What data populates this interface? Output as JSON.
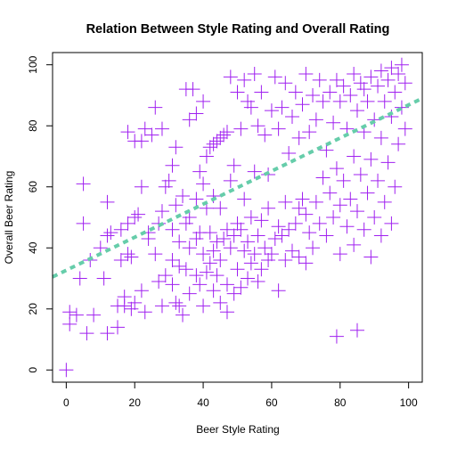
{
  "chart_data": {
    "type": "scatter",
    "title": "Relation Between Style Rating and Overall Rating",
    "xlabel": "Beer Style Rating",
    "ylabel": "Overall Beer Rating",
    "xlim": [
      -4,
      104
    ],
    "ylim": [
      -4,
      104
    ],
    "xticks": [
      0,
      20,
      40,
      60,
      80,
      100
    ],
    "yticks": [
      0,
      20,
      40,
      60,
      80,
      100
    ],
    "grid": false,
    "legend": "none",
    "point_color": "#a020f0",
    "marker": "plus",
    "trend_line": {
      "color": "#66cdaa",
      "style": "dashed",
      "x": [
        -4,
        104
      ],
      "y": [
        30.5,
        89
      ]
    },
    "series": [
      {
        "points": [
          [
            0,
            0
          ],
          [
            1,
            15
          ],
          [
            1,
            19
          ],
          [
            3,
            18
          ],
          [
            4,
            30
          ],
          [
            5,
            48
          ],
          [
            5,
            61
          ],
          [
            6,
            12
          ],
          [
            7,
            36
          ],
          [
            8,
            18
          ],
          [
            10,
            40
          ],
          [
            11,
            30
          ],
          [
            12,
            12
          ],
          [
            12,
            44
          ],
          [
            12,
            55
          ],
          [
            13,
            45
          ],
          [
            15,
            14
          ],
          [
            15,
            21
          ],
          [
            16,
            36
          ],
          [
            16,
            46
          ],
          [
            17,
            21
          ],
          [
            17,
            24
          ],
          [
            18,
            38
          ],
          [
            18,
            48
          ],
          [
            18,
            78
          ],
          [
            19,
            20
          ],
          [
            19,
            37
          ],
          [
            20,
            22
          ],
          [
            20,
            50
          ],
          [
            20,
            75
          ],
          [
            21,
            51
          ],
          [
            22,
            26
          ],
          [
            22,
            60
          ],
          [
            22,
            75
          ],
          [
            23,
            79
          ],
          [
            23,
            19
          ],
          [
            24,
            43
          ],
          [
            24,
            45
          ],
          [
            25,
            77
          ],
          [
            26,
            86
          ],
          [
            26,
            38
          ],
          [
            27,
            29
          ],
          [
            27,
            48
          ],
          [
            28,
            21
          ],
          [
            28,
            52
          ],
          [
            28,
            79
          ],
          [
            29,
            31
          ],
          [
            29,
            60
          ],
          [
            30,
            62
          ],
          [
            31,
            28
          ],
          [
            31,
            36
          ],
          [
            31,
            46
          ],
          [
            31,
            67
          ],
          [
            32,
            22
          ],
          [
            32,
            54
          ],
          [
            32,
            73
          ],
          [
            33,
            21
          ],
          [
            33,
            34
          ],
          [
            33,
            42
          ],
          [
            34,
            18
          ],
          [
            34,
            57
          ],
          [
            35,
            33
          ],
          [
            35,
            48
          ],
          [
            35,
            92
          ],
          [
            36,
            25
          ],
          [
            36,
            40
          ],
          [
            36,
            50
          ],
          [
            36,
            82
          ],
          [
            37,
            92
          ],
          [
            38,
            31
          ],
          [
            38,
            43
          ],
          [
            38,
            56
          ],
          [
            38,
            84
          ],
          [
            39,
            28
          ],
          [
            39,
            45
          ],
          [
            39,
            65
          ],
          [
            40,
            21
          ],
          [
            40,
            38
          ],
          [
            40,
            61
          ],
          [
            40,
            88
          ],
          [
            41,
            32
          ],
          [
            41,
            53
          ],
          [
            41,
            70
          ],
          [
            42,
            35
          ],
          [
            42,
            45
          ],
          [
            42,
            73
          ],
          [
            43,
            26
          ],
          [
            43,
            39
          ],
          [
            43,
            57
          ],
          [
            43,
            74
          ],
          [
            44,
            31
          ],
          [
            44,
            42
          ],
          [
            44,
            75
          ],
          [
            45,
            22
          ],
          [
            45,
            36
          ],
          [
            45,
            53
          ],
          [
            45,
            76
          ],
          [
            46,
            43
          ],
          [
            46,
            77
          ],
          [
            47,
            19
          ],
          [
            47,
            28
          ],
          [
            47,
            46
          ],
          [
            47,
            78
          ],
          [
            48,
            40
          ],
          [
            48,
            62
          ],
          [
            48,
            96
          ],
          [
            49,
            25
          ],
          [
            49,
            44
          ],
          [
            49,
            67
          ],
          [
            50,
            33
          ],
          [
            50,
            48
          ],
          [
            50,
            91
          ],
          [
            51,
            27
          ],
          [
            51,
            46
          ],
          [
            51,
            79
          ],
          [
            52,
            39
          ],
          [
            52,
            56
          ],
          [
            52,
            95
          ],
          [
            53,
            30
          ],
          [
            53,
            42
          ],
          [
            53,
            88
          ],
          [
            54,
            35
          ],
          [
            54,
            50
          ],
          [
            54,
            86
          ],
          [
            55,
            38
          ],
          [
            55,
            65
          ],
          [
            55,
            97
          ],
          [
            56,
            29
          ],
          [
            56,
            44
          ],
          [
            56,
            80
          ],
          [
            57,
            33
          ],
          [
            57,
            49
          ],
          [
            57,
            91
          ],
          [
            58,
            40
          ],
          [
            58,
            77
          ],
          [
            59,
            36
          ],
          [
            59,
            53
          ],
          [
            59,
            64
          ],
          [
            60,
            38
          ],
          [
            60,
            85
          ],
          [
            61,
            43
          ],
          [
            61,
            96
          ],
          [
            62,
            26
          ],
          [
            62,
            47
          ],
          [
            62,
            79
          ],
          [
            63,
            44
          ],
          [
            63,
            86
          ],
          [
            64,
            36
          ],
          [
            64,
            55
          ],
          [
            64,
            94
          ],
          [
            65,
            46
          ],
          [
            65,
            71
          ],
          [
            66,
            39
          ],
          [
            66,
            83
          ],
          [
            67,
            48
          ],
          [
            67,
            91
          ],
          [
            68,
            37
          ],
          [
            68,
            53
          ],
          [
            68,
            76
          ],
          [
            69,
            56
          ],
          [
            69,
            87
          ],
          [
            70,
            35
          ],
          [
            70,
            51
          ],
          [
            70,
            97
          ],
          [
            71,
            45
          ],
          [
            71,
            78
          ],
          [
            72,
            40
          ],
          [
            72,
            90
          ],
          [
            73,
            55
          ],
          [
            73,
            82
          ],
          [
            74,
            48
          ],
          [
            74,
            95
          ],
          [
            75,
            63
          ],
          [
            75,
            88
          ],
          [
            76,
            44
          ],
          [
            76,
            72
          ],
          [
            77,
            58
          ],
          [
            77,
            91
          ],
          [
            78,
            50
          ],
          [
            78,
            81
          ],
          [
            79,
            11
          ],
          [
            79,
            66
          ],
          [
            79,
            95
          ],
          [
            80,
            38
          ],
          [
            80,
            54
          ],
          [
            80,
            88
          ],
          [
            81,
            62
          ],
          [
            81,
            93
          ],
          [
            82,
            47
          ],
          [
            82,
            79
          ],
          [
            83,
            56
          ],
          [
            83,
            90
          ],
          [
            84,
            41
          ],
          [
            84,
            70
          ],
          [
            84,
            97
          ],
          [
            85,
            13
          ],
          [
            85,
            52
          ],
          [
            85,
            85
          ],
          [
            86,
            64
          ],
          [
            86,
            94
          ],
          [
            87,
            46
          ],
          [
            87,
            78
          ],
          [
            87,
            92
          ],
          [
            88,
            58
          ],
          [
            88,
            88
          ],
          [
            89,
            37
          ],
          [
            89,
            69
          ],
          [
            89,
            96
          ],
          [
            90,
            50
          ],
          [
            90,
            82
          ],
          [
            91,
            62
          ],
          [
            91,
            93
          ],
          [
            92,
            44
          ],
          [
            92,
            76
          ],
          [
            92,
            98
          ],
          [
            93,
            55
          ],
          [
            93,
            88
          ],
          [
            94,
            68
          ],
          [
            94,
            95
          ],
          [
            95,
            48
          ],
          [
            95,
            83
          ],
          [
            95,
            99
          ],
          [
            96,
            60
          ],
          [
            96,
            91
          ],
          [
            97,
            74
          ],
          [
            97,
            97
          ],
          [
            98,
            86
          ],
          [
            98,
            100
          ],
          [
            99,
            94
          ],
          [
            99,
            79
          ]
        ]
      }
    ]
  }
}
